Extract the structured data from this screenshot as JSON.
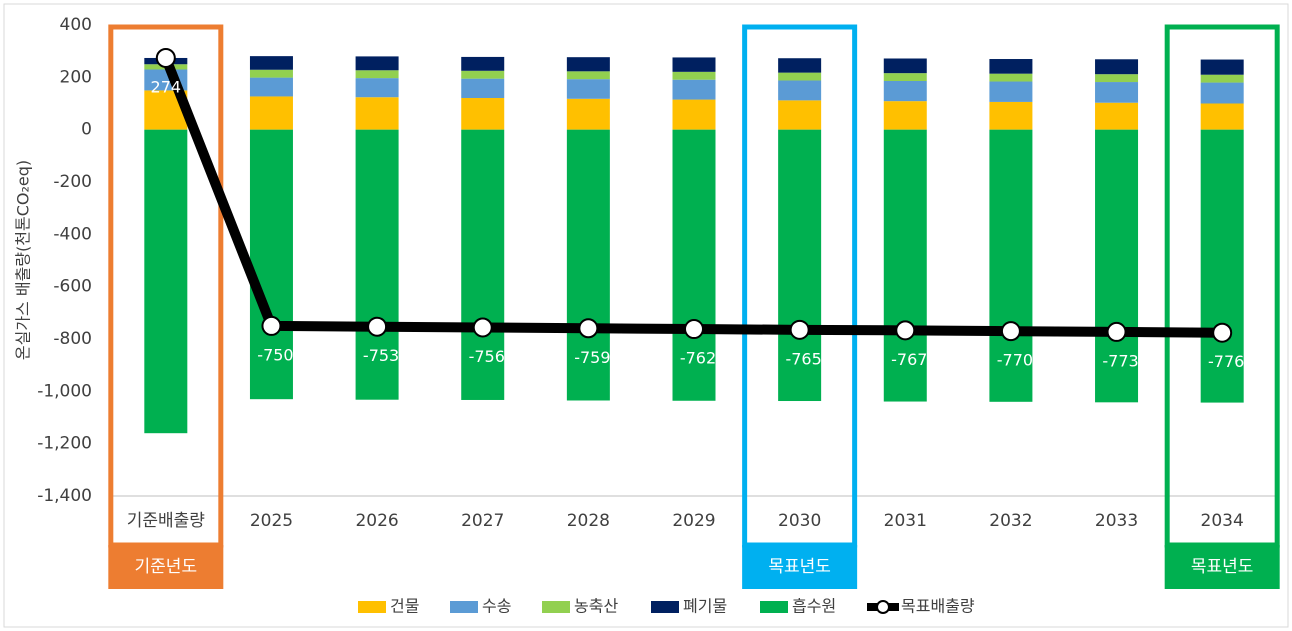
{
  "chart_data": {
    "type": "bar",
    "stacked": true,
    "y_label": "온실가스 배출량(천톤CO₂eq)",
    "categories": [
      "기준배출량",
      "2025",
      "2026",
      "2027",
      "2028",
      "2029",
      "2030",
      "2031",
      "2032",
      "2033",
      "2034"
    ],
    "series": [
      {
        "name": "건물",
        "color": "#ffc000",
        "values": [
          150,
          127,
          124,
          121,
          118,
          115,
          112,
          109,
          106,
          103,
          100
        ]
      },
      {
        "name": "수송",
        "color": "#5b9bd5",
        "values": [
          80,
          72,
          73,
          74,
          75,
          76,
          76,
          77,
          78,
          79,
          80
        ]
      },
      {
        "name": "농축산",
        "color": "#92d050",
        "values": [
          20,
          30,
          30,
          30,
          30,
          30,
          30,
          30,
          30,
          30,
          30
        ]
      },
      {
        "name": "폐기물",
        "color": "#002060",
        "values": [
          24,
          52,
          53,
          53,
          54,
          55,
          55,
          56,
          56,
          57,
          58
        ]
      },
      {
        "name": "흡수원",
        "color": "#00b050",
        "values": [
          -1160,
          -1030,
          -1032,
          -1033,
          -1035,
          -1036,
          -1037,
          -1039,
          -1040,
          -1042,
          -1043
        ]
      }
    ],
    "line_series": {
      "name": "목표배출량",
      "color": "#000000",
      "values": [
        274,
        -750,
        -753,
        -756,
        -759,
        -762,
        -765,
        -767,
        -770,
        -773,
        -776
      ]
    },
    "ylim": [
      -1400,
      400
    ],
    "yticks": [
      400,
      200,
      0,
      -200,
      -400,
      -600,
      -800,
      {
        "value": -1000,
        "label": "-1,000"
      },
      {
        "value": -1200,
        "label": "-1,200"
      },
      {
        "value": -1400,
        "label": "-1,400"
      }
    ],
    "grid": false,
    "legend": "bottom",
    "annotations": [
      {
        "category": "기준배출량",
        "label": "기준년도",
        "color": "#ed7d31"
      },
      {
        "category": "2030",
        "label": "목표년도",
        "color": "#00b0f0"
      },
      {
        "category": "2034",
        "label": "목표년도",
        "color": "#00b050"
      }
    ]
  }
}
